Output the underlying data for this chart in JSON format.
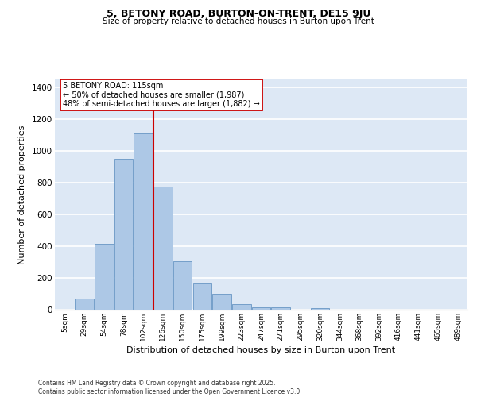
{
  "title1": "5, BETONY ROAD, BURTON-ON-TRENT, DE15 9JU",
  "title2": "Size of property relative to detached houses in Burton upon Trent",
  "xlabel": "Distribution of detached houses by size in Burton upon Trent",
  "ylabel": "Number of detached properties",
  "categories": [
    "5sqm",
    "29sqm",
    "54sqm",
    "78sqm",
    "102sqm",
    "126sqm",
    "150sqm",
    "175sqm",
    "199sqm",
    "223sqm",
    "247sqm",
    "271sqm",
    "295sqm",
    "320sqm",
    "344sqm",
    "368sqm",
    "392sqm",
    "416sqm",
    "441sqm",
    "465sqm",
    "489sqm"
  ],
  "bar_values": [
    0,
    70,
    415,
    950,
    1110,
    775,
    305,
    165,
    100,
    35,
    15,
    15,
    0,
    10,
    0,
    0,
    0,
    0,
    0,
    0,
    0
  ],
  "bar_color": "#adc8e6",
  "bar_edge_color": "#5588bb",
  "background_color": "#dde8f5",
  "grid_color": "#ffffff",
  "vline_color": "#cc0000",
  "vline_index": 4.5,
  "annotation_text": "5 BETONY ROAD: 115sqm\n← 50% of detached houses are smaller (1,987)\n48% of semi-detached houses are larger (1,882) →",
  "annotation_box_color": "#ffffff",
  "annotation_box_edge": "#cc0000",
  "ylim": [
    0,
    1450
  ],
  "yticks": [
    0,
    200,
    400,
    600,
    800,
    1000,
    1200,
    1400
  ],
  "footer": "Contains HM Land Registry data © Crown copyright and database right 2025.\nContains public sector information licensed under the Open Government Licence v3.0."
}
